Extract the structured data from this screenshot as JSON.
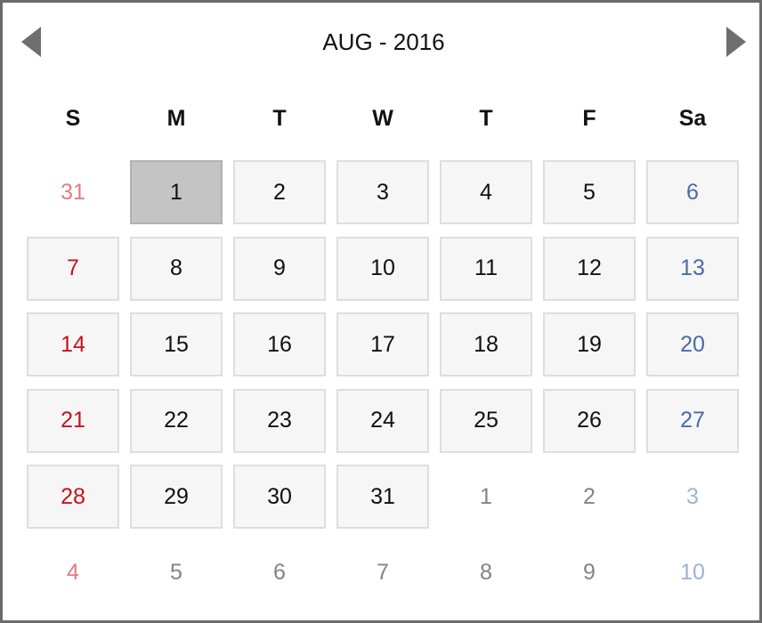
{
  "calendar": {
    "title": "AUG - 2016",
    "weekdays": [
      "S",
      "M",
      "T",
      "W",
      "T",
      "F",
      "Sa"
    ],
    "colors": {
      "weekday_text": "#111111",
      "sunday": "#c8111e",
      "saturday": "#4a6aa9",
      "sunday_outside": "#e07d82",
      "saturday_outside": "#9fb1d6",
      "outside": "#838383",
      "day_bg": "#f6f6f6",
      "day_border": "#dedede",
      "selected_bg": "#c4c4c4"
    },
    "weeks": [
      [
        {
          "d": "31",
          "t": "prev"
        },
        {
          "d": "1",
          "t": "cur",
          "selected": true
        },
        {
          "d": "2",
          "t": "cur"
        },
        {
          "d": "3",
          "t": "cur"
        },
        {
          "d": "4",
          "t": "cur"
        },
        {
          "d": "5",
          "t": "cur"
        },
        {
          "d": "6",
          "t": "cur"
        }
      ],
      [
        {
          "d": "7",
          "t": "cur"
        },
        {
          "d": "8",
          "t": "cur"
        },
        {
          "d": "9",
          "t": "cur"
        },
        {
          "d": "10",
          "t": "cur"
        },
        {
          "d": "11",
          "t": "cur"
        },
        {
          "d": "12",
          "t": "cur"
        },
        {
          "d": "13",
          "t": "cur"
        }
      ],
      [
        {
          "d": "14",
          "t": "cur"
        },
        {
          "d": "15",
          "t": "cur"
        },
        {
          "d": "16",
          "t": "cur"
        },
        {
          "d": "17",
          "t": "cur"
        },
        {
          "d": "18",
          "t": "cur"
        },
        {
          "d": "19",
          "t": "cur"
        },
        {
          "d": "20",
          "t": "cur"
        }
      ],
      [
        {
          "d": "21",
          "t": "cur"
        },
        {
          "d": "22",
          "t": "cur"
        },
        {
          "d": "23",
          "t": "cur"
        },
        {
          "d": "24",
          "t": "cur"
        },
        {
          "d": "25",
          "t": "cur"
        },
        {
          "d": "26",
          "t": "cur"
        },
        {
          "d": "27",
          "t": "cur"
        }
      ],
      [
        {
          "d": "28",
          "t": "cur"
        },
        {
          "d": "29",
          "t": "cur"
        },
        {
          "d": "30",
          "t": "cur"
        },
        {
          "d": "31",
          "t": "cur"
        },
        {
          "d": "1",
          "t": "next"
        },
        {
          "d": "2",
          "t": "next"
        },
        {
          "d": "3",
          "t": "next"
        }
      ],
      [
        {
          "d": "4",
          "t": "next"
        },
        {
          "d": "5",
          "t": "next"
        },
        {
          "d": "6",
          "t": "next"
        },
        {
          "d": "7",
          "t": "next"
        },
        {
          "d": "8",
          "t": "next"
        },
        {
          "d": "9",
          "t": "next"
        },
        {
          "d": "10",
          "t": "next"
        }
      ]
    ]
  }
}
